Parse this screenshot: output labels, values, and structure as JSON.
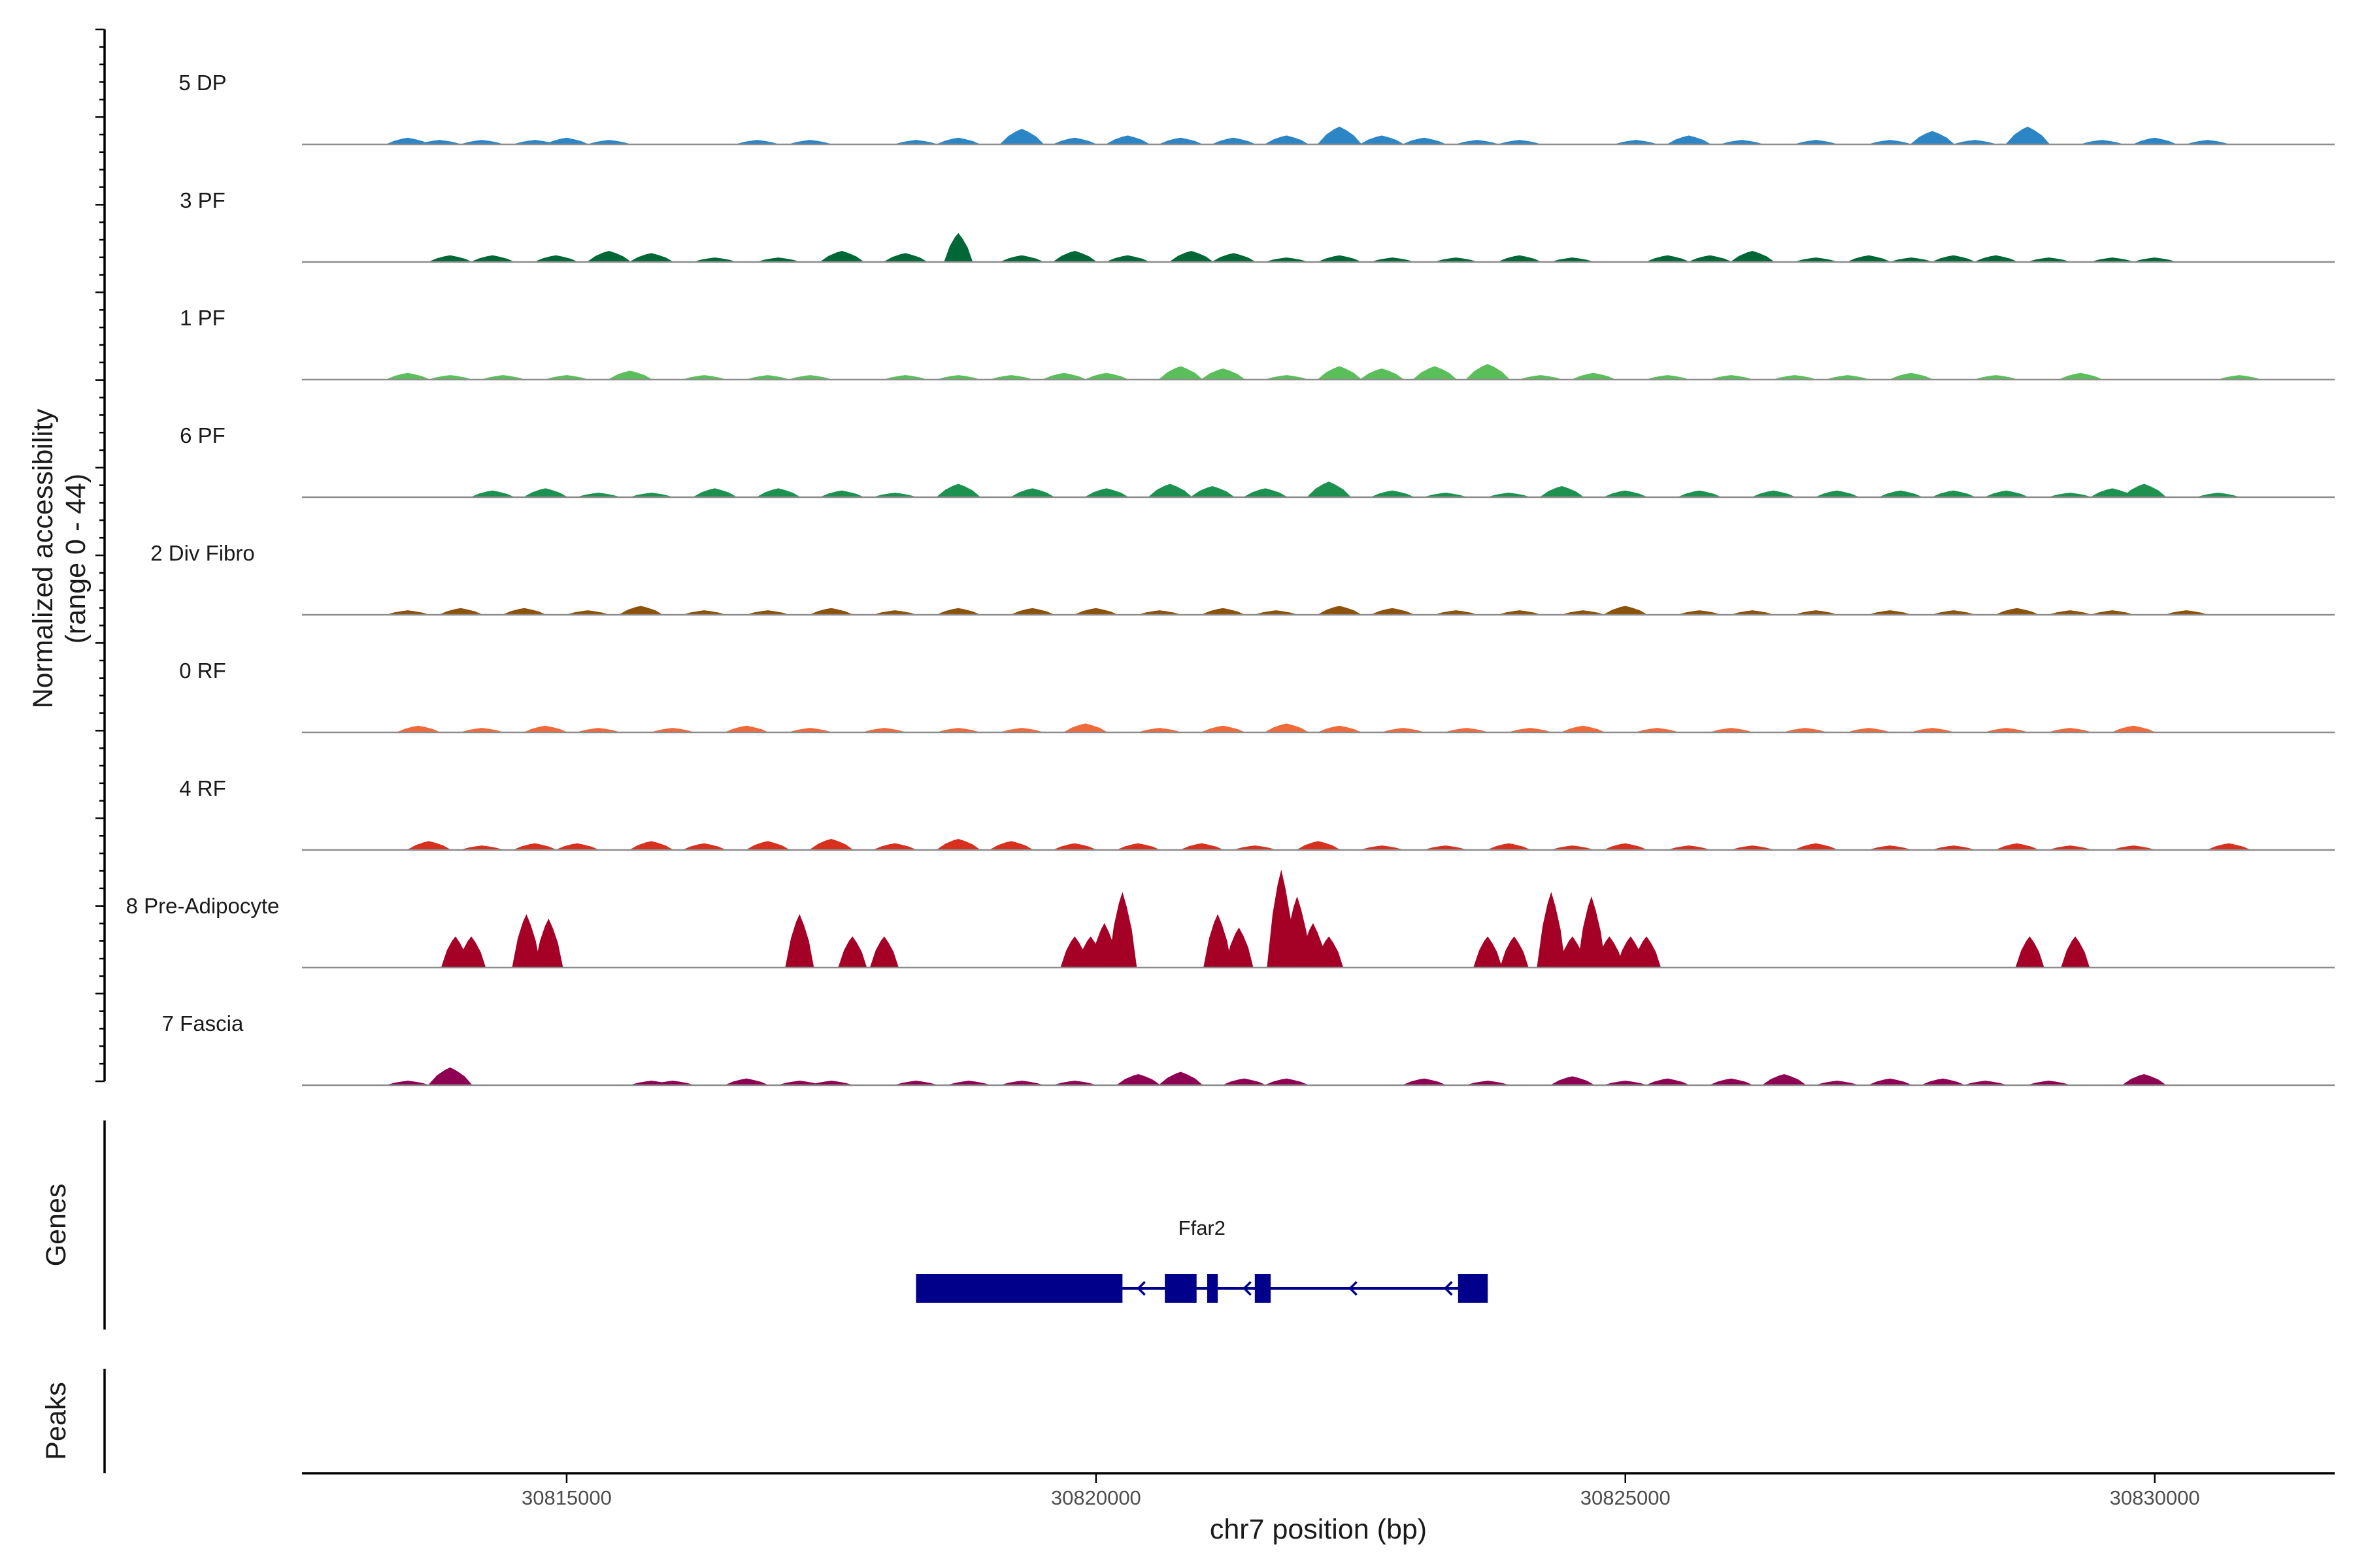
{
  "chart_data": {
    "type": "area",
    "title": "",
    "ylabel_line1": "Normalized accessibility",
    "ylabel_line2": "(range 0 - 44)",
    "y_range": [
      0,
      44
    ],
    "xlabel": "chr7 position (bp)",
    "xlim": [
      30812500,
      30831700
    ],
    "x_ticks": [
      30815000,
      30820000,
      30825000,
      30830000
    ],
    "x_tick_labels": [
      "30815000",
      "30820000",
      "30825000",
      "30830000"
    ],
    "genes_label": "Genes",
    "peaks_label": "Peaks",
    "tracks": [
      {
        "name": "5 DP",
        "color": "#2C85C5",
        "peaks": [
          [
            30813500,
            3
          ],
          [
            30813800,
            2
          ],
          [
            30814200,
            2
          ],
          [
            30814700,
            2
          ],
          [
            30815000,
            3
          ],
          [
            30815400,
            2
          ],
          [
            30816800,
            2
          ],
          [
            30817300,
            2
          ],
          [
            30818300,
            2
          ],
          [
            30818700,
            3
          ],
          [
            30819300,
            7
          ],
          [
            30819800,
            3
          ],
          [
            30820300,
            4
          ],
          [
            30820800,
            3
          ],
          [
            30821300,
            3
          ],
          [
            30821800,
            4
          ],
          [
            30822300,
            8
          ],
          [
            30822700,
            4
          ],
          [
            30823100,
            3
          ],
          [
            30823600,
            2
          ],
          [
            30824000,
            2
          ],
          [
            30825100,
            2
          ],
          [
            30825600,
            4
          ],
          [
            30826100,
            2
          ],
          [
            30826800,
            2
          ],
          [
            30827500,
            2
          ],
          [
            30827900,
            6
          ],
          [
            30828300,
            2
          ],
          [
            30828800,
            8
          ],
          [
            30829500,
            2
          ],
          [
            30830000,
            3
          ],
          [
            30830500,
            2
          ]
        ]
      },
      {
        "name": "3 PF",
        "color": "#006837",
        "peaks": [
          [
            30813900,
            3
          ],
          [
            30814300,
            3
          ],
          [
            30814900,
            3
          ],
          [
            30815400,
            5
          ],
          [
            30815800,
            4
          ],
          [
            30816400,
            2
          ],
          [
            30817000,
            2
          ],
          [
            30817600,
            5
          ],
          [
            30818200,
            4
          ],
          [
            30818700,
            13
          ],
          [
            30819300,
            3
          ],
          [
            30819800,
            5
          ],
          [
            30820300,
            3
          ],
          [
            30820900,
            5
          ],
          [
            30821300,
            4
          ],
          [
            30821800,
            2
          ],
          [
            30822300,
            3
          ],
          [
            30822800,
            2
          ],
          [
            30823400,
            2
          ],
          [
            30824000,
            3
          ],
          [
            30824500,
            2
          ],
          [
            30825400,
            3
          ],
          [
            30825800,
            3
          ],
          [
            30826200,
            5
          ],
          [
            30826800,
            2
          ],
          [
            30827300,
            3
          ],
          [
            30827700,
            2
          ],
          [
            30828100,
            3
          ],
          [
            30828500,
            3
          ],
          [
            30829000,
            2
          ],
          [
            30829600,
            2
          ],
          [
            30830000,
            2
          ]
        ]
      },
      {
        "name": "1 PF",
        "color": "#5ABF5A",
        "peaks": [
          [
            30813500,
            3
          ],
          [
            30813900,
            2
          ],
          [
            30814400,
            2
          ],
          [
            30815000,
            2
          ],
          [
            30815600,
            4
          ],
          [
            30816300,
            2
          ],
          [
            30816900,
            2
          ],
          [
            30817300,
            2
          ],
          [
            30818200,
            2
          ],
          [
            30818700,
            2
          ],
          [
            30819200,
            2
          ],
          [
            30819700,
            3
          ],
          [
            30820100,
            3
          ],
          [
            30820800,
            6
          ],
          [
            30821200,
            5
          ],
          [
            30821800,
            2
          ],
          [
            30822300,
            6
          ],
          [
            30822700,
            5
          ],
          [
            30823200,
            6
          ],
          [
            30823700,
            7
          ],
          [
            30824200,
            2
          ],
          [
            30824700,
            3
          ],
          [
            30825400,
            2
          ],
          [
            30826000,
            2
          ],
          [
            30826600,
            2
          ],
          [
            30827100,
            2
          ],
          [
            30827700,
            3
          ],
          [
            30828500,
            2
          ],
          [
            30829300,
            3
          ],
          [
            30830800,
            2
          ]
        ]
      },
      {
        "name": "6 PF",
        "color": "#1D9150",
        "peaks": [
          [
            30814300,
            3
          ],
          [
            30814800,
            4
          ],
          [
            30815300,
            2
          ],
          [
            30815800,
            2
          ],
          [
            30816400,
            4
          ],
          [
            30817000,
            4
          ],
          [
            30817600,
            3
          ],
          [
            30818100,
            2
          ],
          [
            30818700,
            6
          ],
          [
            30819400,
            4
          ],
          [
            30820100,
            4
          ],
          [
            30820700,
            6
          ],
          [
            30821100,
            5
          ],
          [
            30821600,
            4
          ],
          [
            30822200,
            7
          ],
          [
            30822800,
            3
          ],
          [
            30823300,
            2
          ],
          [
            30823900,
            2
          ],
          [
            30824400,
            5
          ],
          [
            30825000,
            3
          ],
          [
            30825700,
            3
          ],
          [
            30826400,
            3
          ],
          [
            30827000,
            3
          ],
          [
            30827600,
            3
          ],
          [
            30828100,
            3
          ],
          [
            30828600,
            3
          ],
          [
            30829200,
            2
          ],
          [
            30829600,
            4
          ],
          [
            30829900,
            6
          ],
          [
            30830600,
            2
          ]
        ]
      },
      {
        "name": "2 Div Fibro",
        "color": "#8C510A",
        "peaks": [
          [
            30813500,
            2
          ],
          [
            30814000,
            3
          ],
          [
            30814600,
            3
          ],
          [
            30815200,
            2
          ],
          [
            30815700,
            4
          ],
          [
            30816300,
            2
          ],
          [
            30816900,
            2
          ],
          [
            30817500,
            3
          ],
          [
            30818100,
            2
          ],
          [
            30818700,
            3
          ],
          [
            30819400,
            3
          ],
          [
            30820000,
            3
          ],
          [
            30820600,
            2
          ],
          [
            30821200,
            3
          ],
          [
            30821700,
            2
          ],
          [
            30822300,
            4
          ],
          [
            30822800,
            3
          ],
          [
            30823400,
            2
          ],
          [
            30824000,
            2
          ],
          [
            30824600,
            2
          ],
          [
            30825000,
            4
          ],
          [
            30825700,
            2
          ],
          [
            30826200,
            2
          ],
          [
            30826800,
            2
          ],
          [
            30827500,
            2
          ],
          [
            30828100,
            2
          ],
          [
            30828700,
            3
          ],
          [
            30829200,
            2
          ],
          [
            30829600,
            2
          ],
          [
            30830300,
            2
          ]
        ]
      },
      {
        "name": "0 RF",
        "color": "#F16A3A",
        "peaks": [
          [
            30813600,
            3
          ],
          [
            30814200,
            2
          ],
          [
            30814800,
            3
          ],
          [
            30815300,
            2
          ],
          [
            30816000,
            2
          ],
          [
            30816700,
            3
          ],
          [
            30817300,
            2
          ],
          [
            30818000,
            2
          ],
          [
            30818700,
            2
          ],
          [
            30819300,
            2
          ],
          [
            30819900,
            4
          ],
          [
            30820600,
            2
          ],
          [
            30821200,
            3
          ],
          [
            30821800,
            4
          ],
          [
            30822300,
            3
          ],
          [
            30822900,
            2
          ],
          [
            30823500,
            2
          ],
          [
            30824100,
            2
          ],
          [
            30824600,
            3
          ],
          [
            30825300,
            2
          ],
          [
            30826000,
            2
          ],
          [
            30826700,
            2
          ],
          [
            30827300,
            2
          ],
          [
            30827900,
            2
          ],
          [
            30828600,
            2
          ],
          [
            30829200,
            2
          ],
          [
            30829800,
            3
          ]
        ]
      },
      {
        "name": "4 RF",
        "color": "#D7301F",
        "peaks": [
          [
            30813700,
            4
          ],
          [
            30814200,
            2
          ],
          [
            30814700,
            3
          ],
          [
            30815100,
            3
          ],
          [
            30815800,
            4
          ],
          [
            30816300,
            3
          ],
          [
            30816900,
            4
          ],
          [
            30817500,
            5
          ],
          [
            30818100,
            3
          ],
          [
            30818700,
            5
          ],
          [
            30819200,
            4
          ],
          [
            30819800,
            3
          ],
          [
            30820400,
            3
          ],
          [
            30821000,
            3
          ],
          [
            30821500,
            2
          ],
          [
            30822100,
            4
          ],
          [
            30822700,
            2
          ],
          [
            30823300,
            2
          ],
          [
            30823900,
            3
          ],
          [
            30824500,
            2
          ],
          [
            30825000,
            3
          ],
          [
            30825600,
            2
          ],
          [
            30826200,
            2
          ],
          [
            30826800,
            3
          ],
          [
            30827500,
            2
          ],
          [
            30828100,
            2
          ],
          [
            30828700,
            3
          ],
          [
            30829200,
            2
          ],
          [
            30829800,
            2
          ],
          [
            30830700,
            3
          ]
        ]
      },
      {
        "name": "8 Pre-Adipocyte",
        "color": "#A50026",
        "peaks": [
          [
            30813950,
            14
          ],
          [
            30814100,
            14
          ],
          [
            30814620,
            24
          ],
          [
            30814830,
            22
          ],
          [
            30817200,
            24
          ],
          [
            30817700,
            14
          ],
          [
            30818000,
            14
          ],
          [
            30819800,
            14
          ],
          [
            30819950,
            14
          ],
          [
            30820080,
            20
          ],
          [
            30820250,
            34
          ],
          [
            30821150,
            24
          ],
          [
            30821350,
            18
          ],
          [
            30821750,
            44
          ],
          [
            30821900,
            32
          ],
          [
            30822050,
            20
          ],
          [
            30822200,
            14
          ],
          [
            30823700,
            14
          ],
          [
            30823950,
            14
          ],
          [
            30824300,
            34
          ],
          [
            30824500,
            14
          ],
          [
            30824680,
            32
          ],
          [
            30824850,
            14
          ],
          [
            30825050,
            14
          ],
          [
            30825200,
            14
          ],
          [
            30828820,
            14
          ],
          [
            30829250,
            14
          ]
        ]
      },
      {
        "name": "7 Fascia",
        "color": "#8E0152",
        "peaks": [
          [
            30813500,
            2
          ],
          [
            30813900,
            8
          ],
          [
            30815800,
            2
          ],
          [
            30816000,
            2
          ],
          [
            30816700,
            3
          ],
          [
            30817200,
            2
          ],
          [
            30817500,
            2
          ],
          [
            30818300,
            2
          ],
          [
            30818800,
            2
          ],
          [
            30819300,
            2
          ],
          [
            30819800,
            2
          ],
          [
            30820400,
            5
          ],
          [
            30820800,
            6
          ],
          [
            30821400,
            3
          ],
          [
            30821800,
            3
          ],
          [
            30823100,
            3
          ],
          [
            30823700,
            2
          ],
          [
            30824500,
            4
          ],
          [
            30825000,
            2
          ],
          [
            30825400,
            3
          ],
          [
            30826000,
            3
          ],
          [
            30826500,
            5
          ],
          [
            30827000,
            2
          ],
          [
            30827500,
            3
          ],
          [
            30828000,
            3
          ],
          [
            30828400,
            2
          ],
          [
            30829000,
            2
          ],
          [
            30829900,
            5
          ]
        ]
      }
    ],
    "gene": {
      "name": "Ffar2",
      "strand": "-",
      "start": 30818300,
      "end": 30823700,
      "exons": [
        [
          30818300,
          30820250
        ],
        [
          30820650,
          30820950
        ],
        [
          30821050,
          30821150
        ],
        [
          30821500,
          30821650
        ],
        [
          30823420,
          30823700
        ]
      ],
      "color": "#00008B"
    }
  }
}
